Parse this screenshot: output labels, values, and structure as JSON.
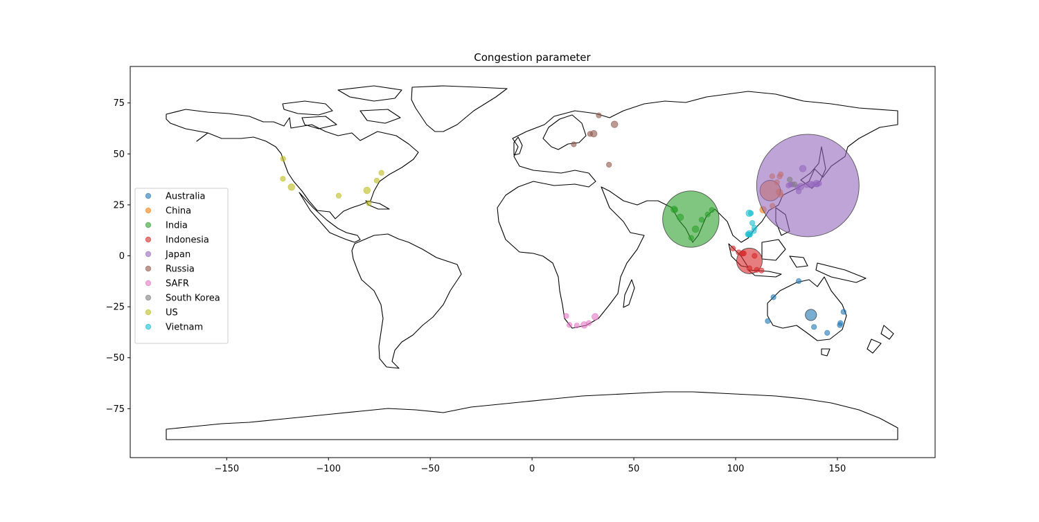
{
  "chart_data": {
    "type": "scatter",
    "title": "Congestion parameter",
    "xlabel": "",
    "ylabel": "",
    "xlim": [
      -197.4,
      198.0
    ],
    "ylim": [
      -99.0,
      92.9
    ],
    "x_ticks": [
      -150,
      -100,
      -50,
      0,
      50,
      100,
      150
    ],
    "y_ticks": [
      -75,
      -50,
      -25,
      0,
      25,
      50,
      75
    ],
    "x_tick_labels": [
      "−150",
      "−100",
      "−50",
      "0",
      "50",
      "100",
      "150"
    ],
    "y_tick_labels": [
      "−75",
      "−50",
      "−25",
      "0",
      "25",
      "50",
      "75"
    ],
    "grid": false,
    "legend_position": "center-left",
    "basemap": "world coastlines",
    "series": [
      {
        "name": "Australia",
        "color": "#1f77b4",
        "points": [
          {
            "x": 153.0,
            "y": -27.5,
            "s": 1
          },
          {
            "x": 151.5,
            "y": -33.0,
            "s": 1
          },
          {
            "x": 151.2,
            "y": -34.0,
            "s": 1
          },
          {
            "x": 145.0,
            "y": -37.8,
            "s": 1
          },
          {
            "x": 138.5,
            "y": -34.9,
            "s": 1
          },
          {
            "x": 137.0,
            "y": -29.0,
            "s": 2.2
          },
          {
            "x": 131.0,
            "y": -12.4,
            "s": 1
          },
          {
            "x": 118.6,
            "y": -20.3,
            "s": 1
          },
          {
            "x": 115.8,
            "y": -32.0,
            "s": 1
          }
        ]
      },
      {
        "name": "China",
        "color": "#ff7f0e",
        "points": [
          {
            "x": 121.5,
            "y": 31.2,
            "s": 1.3
          },
          {
            "x": 117.0,
            "y": 32.0,
            "s": 4.0
          },
          {
            "x": 120.3,
            "y": 36.1,
            "s": 1
          },
          {
            "x": 121.6,
            "y": 38.9,
            "s": 1
          },
          {
            "x": 122.2,
            "y": 40.0,
            "s": 1
          },
          {
            "x": 118.0,
            "y": 39.0,
            "s": 1
          },
          {
            "x": 118.1,
            "y": 24.5,
            "s": 1
          },
          {
            "x": 113.5,
            "y": 22.6,
            "s": 1.3
          },
          {
            "x": 122.3,
            "y": 29.8,
            "s": 1
          }
        ]
      },
      {
        "name": "India",
        "color": "#2ca02c",
        "points": [
          {
            "x": 78.0,
            "y": 18.0,
            "s": 11.0
          },
          {
            "x": 72.8,
            "y": 18.9,
            "s": 1.3
          },
          {
            "x": 69.8,
            "y": 22.8,
            "s": 1.3
          },
          {
            "x": 70.3,
            "y": 22.5,
            "s": 1
          },
          {
            "x": 80.3,
            "y": 13.1,
            "s": 1.3
          },
          {
            "x": 83.3,
            "y": 17.7,
            "s": 1
          },
          {
            "x": 86.3,
            "y": 20.3,
            "s": 1
          },
          {
            "x": 88.3,
            "y": 22.5,
            "s": 1
          },
          {
            "x": 78.2,
            "y": 8.8,
            "s": 1
          }
        ]
      },
      {
        "name": "Indonesia",
        "color": "#d62728",
        "points": [
          {
            "x": 106.8,
            "y": -2.5,
            "s": 5.0
          },
          {
            "x": 106.8,
            "y": -6.1,
            "s": 1
          },
          {
            "x": 112.7,
            "y": -7.2,
            "s": 1
          },
          {
            "x": 110.4,
            "y": -6.9,
            "s": 1
          },
          {
            "x": 98.7,
            "y": 3.6,
            "s": 1
          },
          {
            "x": 104.0,
            "y": 1.2,
            "s": 1
          },
          {
            "x": 109.3,
            "y": -0.03,
            "s": 1
          },
          {
            "x": 101.5,
            "y": 1.7,
            "s": 1
          },
          {
            "x": 103.5,
            "y": 1.1,
            "s": 1
          }
        ]
      },
      {
        "name": "Japan",
        "color": "#9467bd",
        "points": [
          {
            "x": 135.5,
            "y": 34.5,
            "s": 20.0
          },
          {
            "x": 139.7,
            "y": 35.5,
            "s": 1.3
          },
          {
            "x": 136.9,
            "y": 35.0,
            "s": 1.3
          },
          {
            "x": 132.0,
            "y": 34.0,
            "s": 1.3
          },
          {
            "x": 130.4,
            "y": 33.6,
            "s": 1
          },
          {
            "x": 133.0,
            "y": 42.8,
            "s": 1.3
          },
          {
            "x": 141.0,
            "y": 35.5,
            "s": 1
          },
          {
            "x": 140.0,
            "y": 35.0,
            "s": 1
          },
          {
            "x": 126.0,
            "y": 34.5,
            "s": 1
          },
          {
            "x": 127.0,
            "y": 35.0,
            "s": 1
          },
          {
            "x": 128.0,
            "y": 35.0,
            "s": 1
          },
          {
            "x": 131.0,
            "y": 31.6,
            "s": 1
          },
          {
            "x": 135.0,
            "y": 34.7,
            "s": 1
          },
          {
            "x": 138.0,
            "y": 35.0,
            "s": 1
          }
        ]
      },
      {
        "name": "Russia",
        "color": "#8c564b",
        "points": [
          {
            "x": 30.3,
            "y": 59.9,
            "s": 1.3
          },
          {
            "x": 28.5,
            "y": 59.8,
            "s": 1
          },
          {
            "x": 20.5,
            "y": 54.7,
            "s": 1
          },
          {
            "x": 32.8,
            "y": 68.9,
            "s": 1
          },
          {
            "x": 40.5,
            "y": 64.5,
            "s": 1.3
          },
          {
            "x": 37.8,
            "y": 44.7,
            "s": 1
          }
        ]
      },
      {
        "name": "SAFR",
        "color": "#e377c2",
        "points": [
          {
            "x": 18.4,
            "y": -33.9,
            "s": 1
          },
          {
            "x": 22.0,
            "y": -34.2,
            "s": 1
          },
          {
            "x": 25.6,
            "y": -33.9,
            "s": 1.3
          },
          {
            "x": 27.9,
            "y": -33.0,
            "s": 1
          },
          {
            "x": 31.0,
            "y": -29.9,
            "s": 1.3
          },
          {
            "x": 16.8,
            "y": -29.5,
            "s": 1
          }
        ]
      },
      {
        "name": "South Korea",
        "color": "#7f7f7f",
        "points": [
          {
            "x": 129.0,
            "y": 35.1,
            "s": 1
          },
          {
            "x": 126.6,
            "y": 37.4,
            "s": 1
          }
        ]
      },
      {
        "name": "US",
        "color": "#bcbd22",
        "points": [
          {
            "x": -122.3,
            "y": 47.6,
            "s": 1
          },
          {
            "x": -122.4,
            "y": 37.8,
            "s": 1
          },
          {
            "x": -118.2,
            "y": 33.7,
            "s": 1.3
          },
          {
            "x": -95.0,
            "y": 29.5,
            "s": 1
          },
          {
            "x": -80.2,
            "y": 25.8,
            "s": 1
          },
          {
            "x": -81.1,
            "y": 32.1,
            "s": 1.3
          },
          {
            "x": -76.3,
            "y": 36.9,
            "s": 1
          },
          {
            "x": -74.0,
            "y": 40.7,
            "s": 1
          }
        ]
      },
      {
        "name": "Vietnam",
        "color": "#17becf",
        "points": [
          {
            "x": 106.7,
            "y": 10.8,
            "s": 1.3
          },
          {
            "x": 106.0,
            "y": 10.5,
            "s": 1
          },
          {
            "x": 107.0,
            "y": 10.4,
            "s": 1
          },
          {
            "x": 108.2,
            "y": 16.1,
            "s": 1
          },
          {
            "x": 106.7,
            "y": 20.9,
            "s": 1.3
          },
          {
            "x": 107.5,
            "y": 20.9,
            "s": 1
          },
          {
            "x": 109.2,
            "y": 13.8,
            "s": 1
          },
          {
            "x": 109.0,
            "y": 12.2,
            "s": 1
          }
        ]
      }
    ]
  }
}
